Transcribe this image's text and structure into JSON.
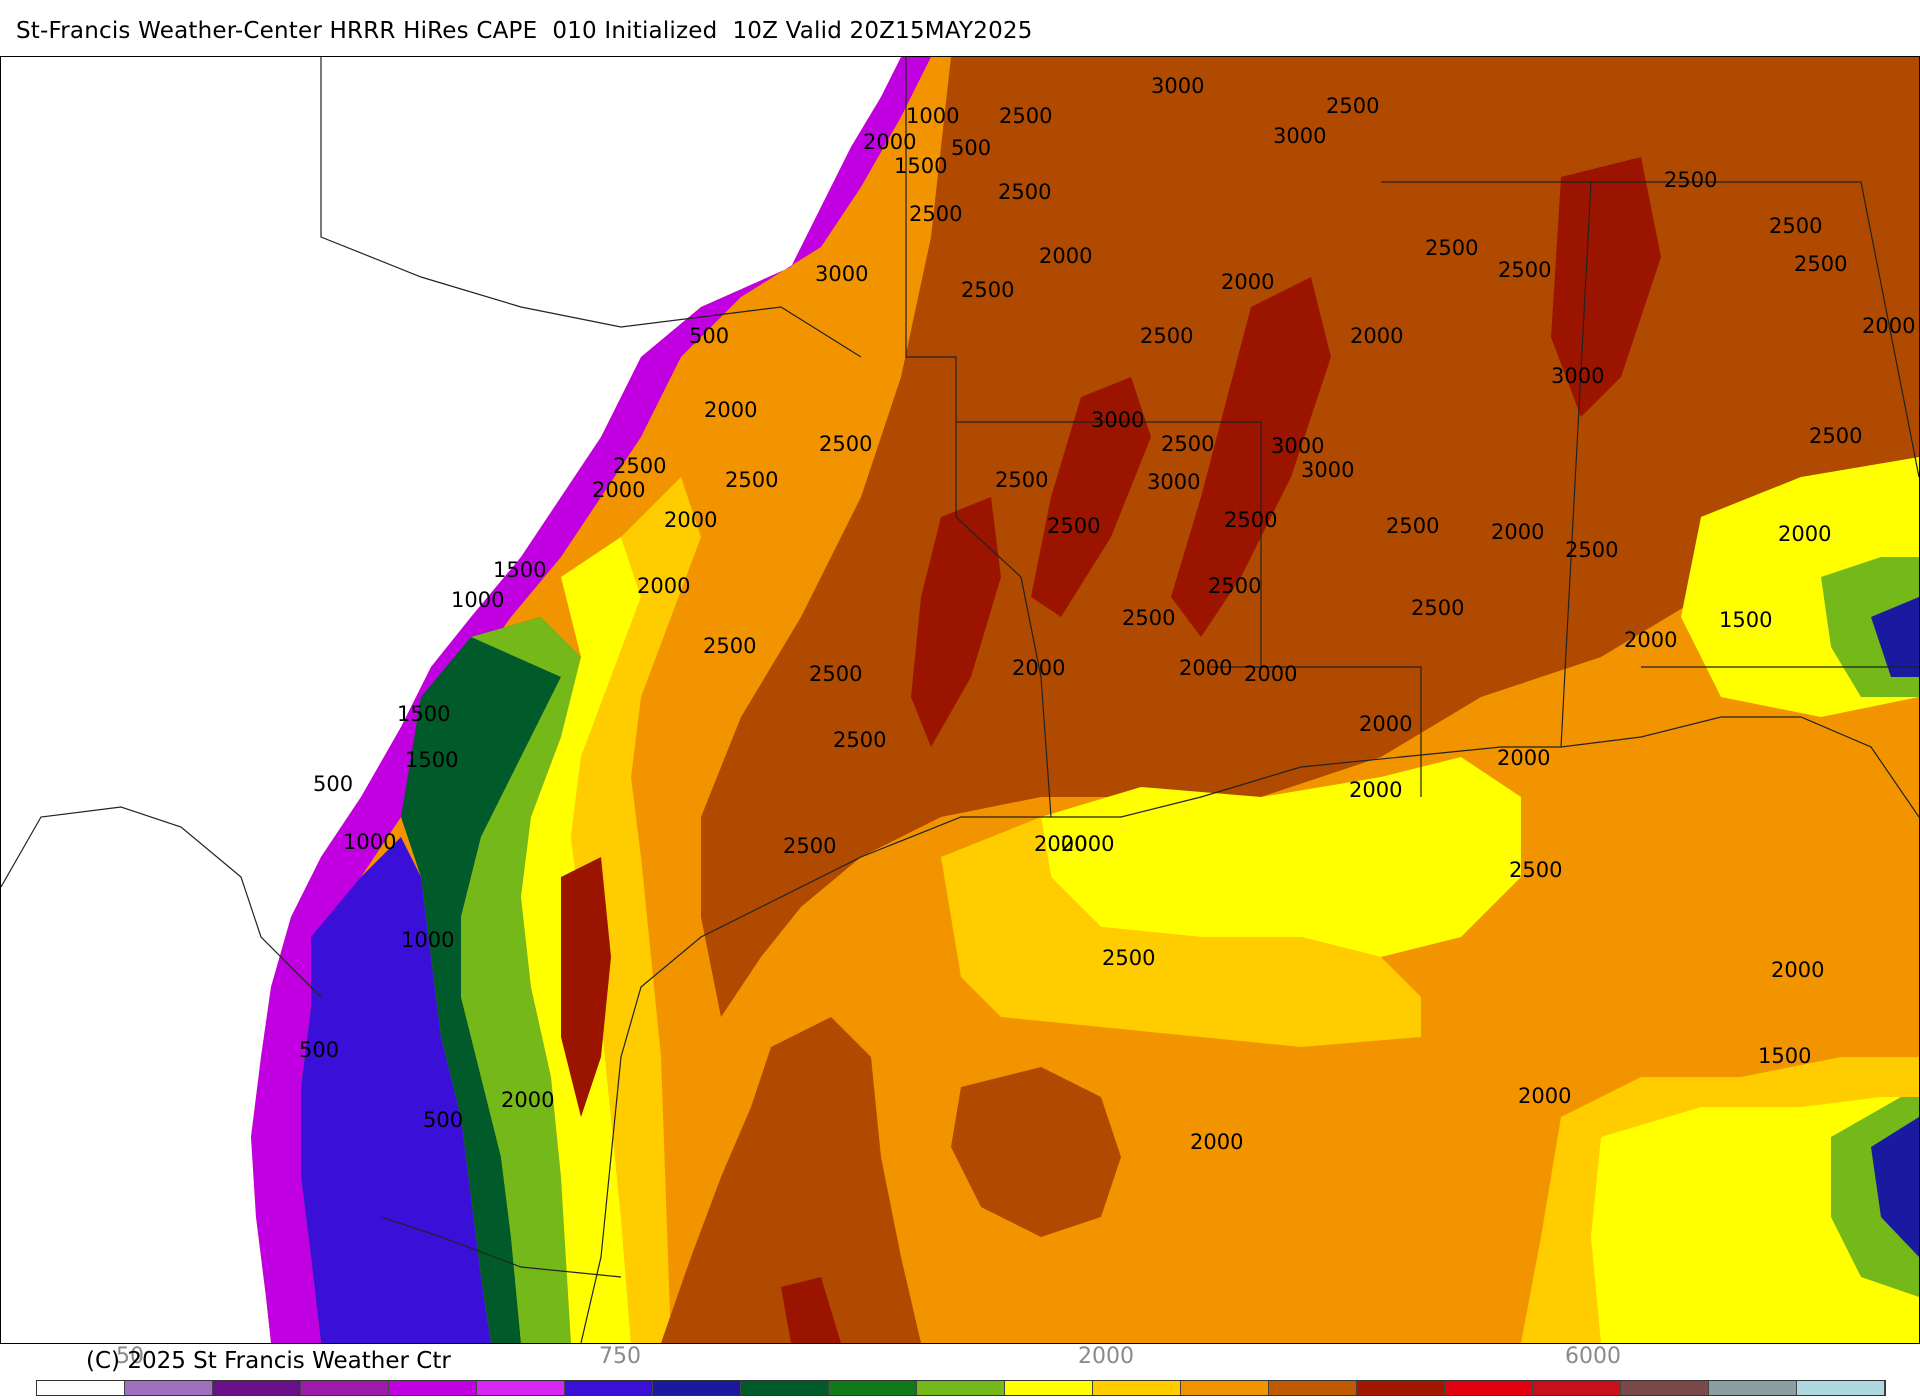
{
  "title": "St-Francis Weather-Center HRRR HiRes CAPE  010 Initialized  10Z Valid 20Z15MAY2025",
  "copyright": "(C) 2025 St Francis Weather Ctr",
  "colorbar": {
    "colors": [
      "#ffffff",
      "#a070c0",
      "#6a0f8a",
      "#9e1aa8",
      "#c000e0",
      "#d628f2",
      "#3a10d8",
      "#1a1aa0",
      "#005a2a",
      "#107a1a",
      "#74b81a",
      "#ffff00",
      "#ffcc00",
      "#f29400",
      "#c05a00",
      "#a01800",
      "#e00010",
      "#c8101a",
      "#7a4a4a",
      "#8a9ea2",
      "#b0d8e0"
    ],
    "tick_labels": [
      "50",
      "750",
      "2000",
      "6000"
    ]
  },
  "legend_colors": {
    "purple_light": "#c000e0",
    "blue": "#3a10d8",
    "dark_green": "#005a2a",
    "green": "#74b81a",
    "yellow": "#ffff00",
    "gold": "#ffcc00",
    "orange": "#f29400",
    "rust": "#b04a00",
    "dark_red": "#9a1400"
  },
  "contour_labels": [
    "3000",
    "2500",
    "1000",
    "2500",
    "500",
    "2000",
    "1500",
    "3000",
    "2500",
    "2500",
    "2500",
    "2000",
    "2500",
    "2000",
    "2500",
    "2500",
    "2500",
    "3000",
    "2500",
    "2000",
    "2500",
    "500",
    "2000",
    "2000",
    "3000",
    "2500",
    "3000",
    "2500",
    "3000",
    "2500",
    "2000",
    "2500",
    "2500",
    "3000",
    "2000",
    "3000",
    "2500",
    "2000",
    "2500",
    "2500",
    "1500",
    "2500",
    "1000",
    "2000",
    "2500",
    "2500",
    "2000",
    "1500",
    "2000",
    "2500",
    "2000",
    "2000",
    "2500",
    "2000",
    "2000",
    "1500",
    "2500",
    "2500",
    "2000",
    "2000",
    "1500",
    "500",
    "2500",
    "1000",
    "2000",
    "2500",
    "2000",
    "2500",
    "1000",
    "2500",
    "500",
    "2000",
    "2000",
    "2000",
    "500",
    "1500",
    "2000"
  ]
}
